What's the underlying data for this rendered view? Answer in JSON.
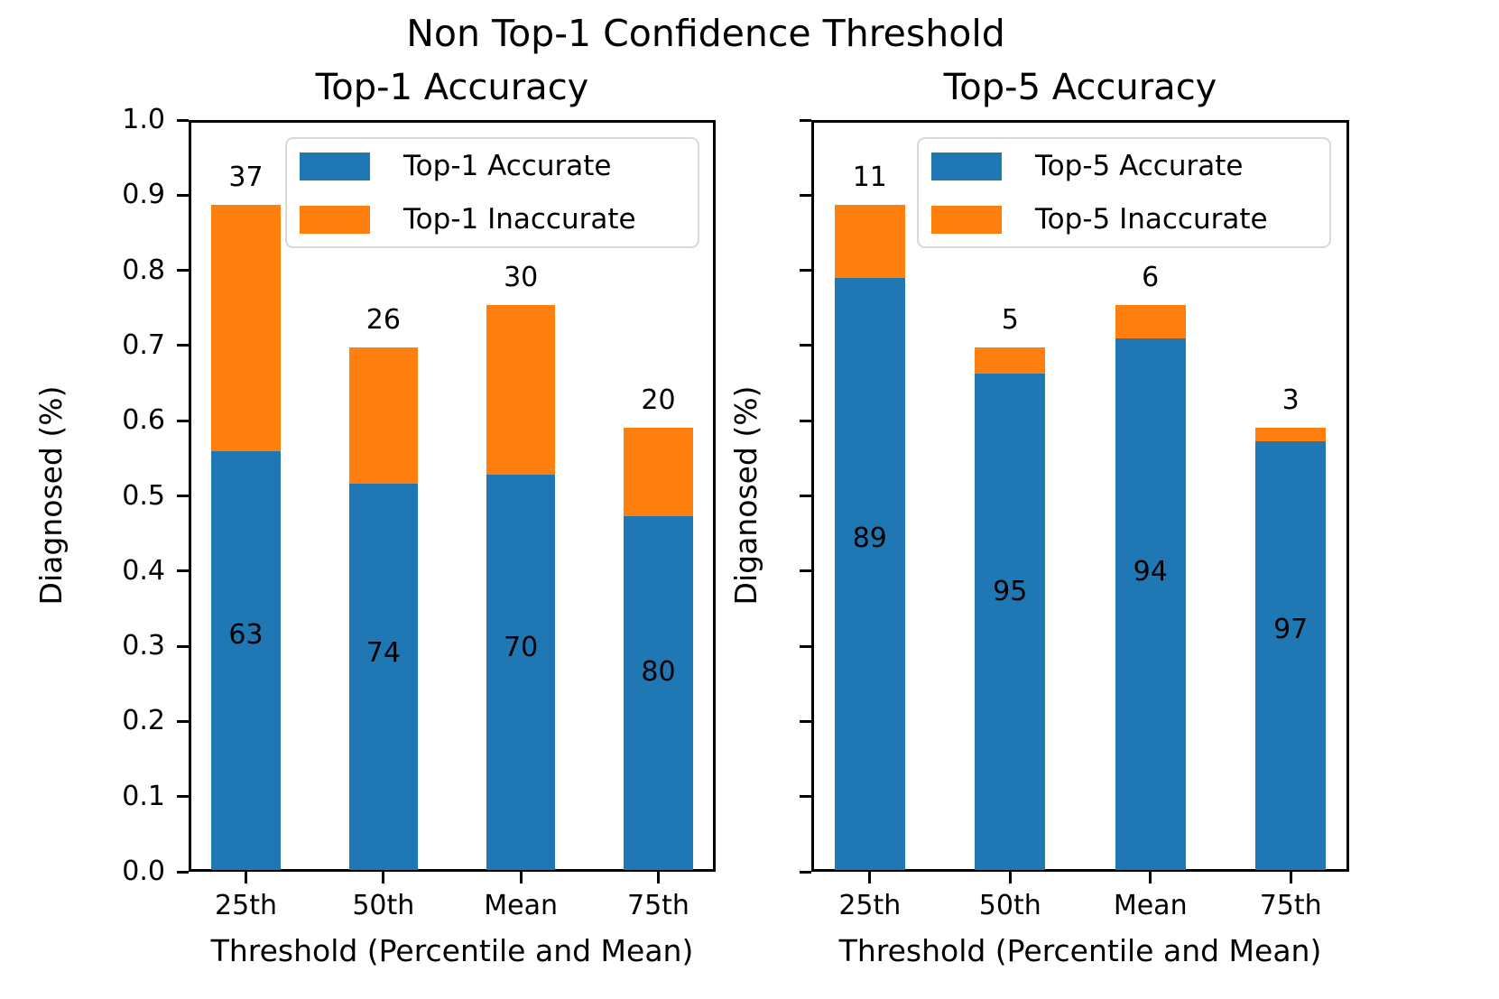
{
  "figure": {
    "title": "Non Top-1 Confidence Threshold"
  },
  "colors": {
    "accurate": "#1f77b4",
    "inaccurate": "#ff7f0e",
    "axis": "#000000",
    "text": "#000000",
    "legend_border": "#d8d8d8",
    "background": "#ffffff"
  },
  "chart_data": {
    "type": "bar",
    "stacked": true,
    "categories": [
      "25th",
      "50th",
      "Mean",
      "75th"
    ],
    "xlabel": "Threshold (Percentile and Mean)",
    "ylim": [
      0.0,
      1.0
    ],
    "ytick_step": 0.1,
    "ytick_labels": [
      "0.0",
      "0.1",
      "0.2",
      "0.3",
      "0.4",
      "0.5",
      "0.6",
      "0.7",
      "0.8",
      "0.9",
      "1.0"
    ],
    "grid": false,
    "legend_position": "upper right",
    "subplots": [
      {
        "title": "Top-1 Accuracy",
        "ylabel": "Diagnosed (%)",
        "show_ytick_labels": true,
        "diagnosed_totals": [
          0.885,
          0.695,
          0.752,
          0.588
        ],
        "series": [
          {
            "name": "Top-1 Accurate",
            "color_key": "accurate",
            "values": [
              0.5576,
              0.5143,
              0.5264,
              0.4704
            ]
          },
          {
            "name": "Top-1 Inaccurate",
            "color_key": "inaccurate",
            "values": [
              0.3275,
              0.1807,
              0.2256,
              0.1176
            ]
          }
        ],
        "bar_top_labels": [
          "37",
          "26",
          "30",
          "20"
        ],
        "bar_inner_labels": [
          "63",
          "74",
          "70",
          "80"
        ]
      },
      {
        "title": "Top-5 Accuracy",
        "ylabel": "Diganosed (%)",
        "show_ytick_labels": false,
        "diagnosed_totals": [
          0.885,
          0.695,
          0.752,
          0.588
        ],
        "series": [
          {
            "name": "Top-5 Accurate",
            "color_key": "accurate",
            "values": [
              0.7877,
              0.6603,
              0.7069,
              0.5704
            ]
          },
          {
            "name": "Top-5 Inaccurate",
            "color_key": "inaccurate",
            "values": [
              0.0974,
              0.0348,
              0.0451,
              0.0176
            ]
          }
        ],
        "bar_top_labels": [
          "11",
          "5",
          "6",
          "3"
        ],
        "bar_inner_labels": [
          "89",
          "95",
          "94",
          "97"
        ]
      }
    ]
  }
}
